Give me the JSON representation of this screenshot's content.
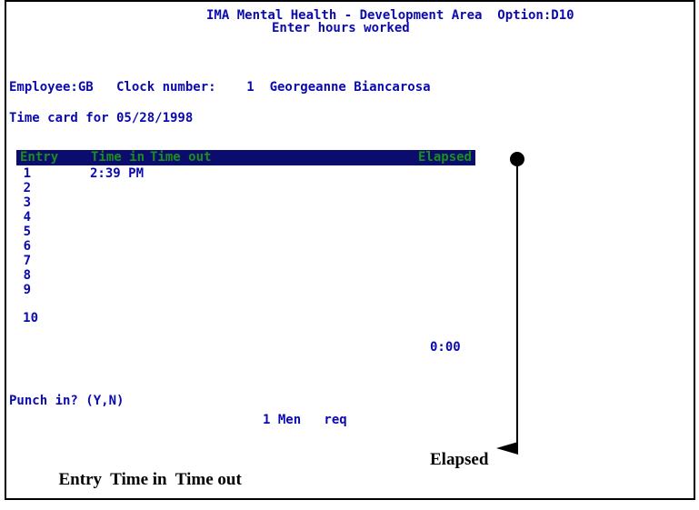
{
  "header": {
    "title_line1": "IMA Mental Health - Development Area  Option:D10",
    "title_line2": "Enter hours worked"
  },
  "employee": {
    "line": "Employee:GB   Clock number:    1  Georgeanne Biancarosa"
  },
  "timecard": {
    "line": "Time card for 05/28/1998"
  },
  "table": {
    "headers": {
      "entry": "Entry",
      "time_in": "Time in",
      "time_out": "Time out",
      "elapsed": "Elapsed"
    },
    "rows": [
      {
        "num": "1",
        "time_in": "2:39 PM"
      },
      {
        "num": "2",
        "time_in": ""
      },
      {
        "num": "3",
        "time_in": ""
      },
      {
        "num": "4",
        "time_in": ""
      },
      {
        "num": "5",
        "time_in": ""
      },
      {
        "num": "6",
        "time_in": ""
      },
      {
        "num": "7",
        "time_in": ""
      },
      {
        "num": "8",
        "time_in": ""
      },
      {
        "num": "9",
        "time_in": ""
      },
      {
        "num": "10",
        "time_in": ""
      }
    ],
    "elapsed_total": "0:00"
  },
  "prompt": {
    "text": "Punch in? (Y,N)"
  },
  "status": {
    "text": "1 Men   req"
  },
  "caption": {
    "left": "Entry  Time in  Time out",
    "right": "Elapsed"
  },
  "colors": {
    "terminal_text": "#0a0ab0",
    "header_bar": "#0c0c6e",
    "header_text": "#1a8f1a",
    "annotation": "#000000"
  }
}
